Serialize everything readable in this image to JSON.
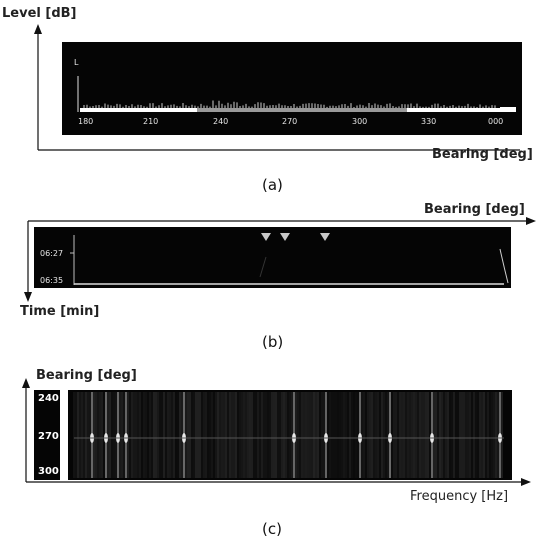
{
  "panel_a": {
    "y_axis_title": "Level [dB]",
    "x_axis_title": "Bearing [deg]",
    "corner_label": "L",
    "ticks": [
      "180",
      "210",
      "240",
      "270",
      "300",
      "330",
      "000"
    ],
    "caption": "(a)"
  },
  "panel_b": {
    "x_axis_title": "Bearing [deg]",
    "y_axis_title": "Time [min]",
    "time_labels": [
      "06:27",
      "06:35"
    ],
    "caption": "(b)"
  },
  "panel_c": {
    "y_axis_title": "Bearing [deg]",
    "x_axis_title": "Frequency [Hz]",
    "bearing_labels": [
      "240",
      "270",
      "300"
    ],
    "caption": "(c)"
  },
  "colors": {
    "screen": "#050505",
    "trace": "#ffffff",
    "marker": "#c8c8c8",
    "highlight_band": "#9a9a9a"
  }
}
